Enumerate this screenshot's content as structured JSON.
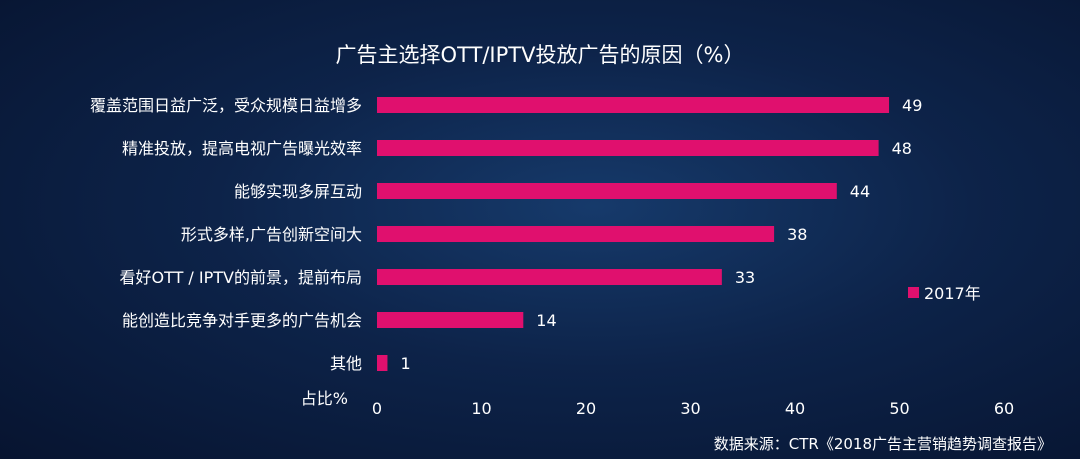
{
  "chart_data": {
    "type": "bar",
    "orientation": "horizontal",
    "title": "广告主选择OTT/IPTV投放广告的原因（%）",
    "categories": [
      "覆盖范围日益广泛，受众规模日益增多",
      "精准投放，提高电视广告曝光效率",
      "能够实现多屏互动",
      "形式多样,广告创新空间大",
      "看好OTT / IPTV的前景，提前布局",
      "能创造比竞争对手更多的广告机会",
      "其他"
    ],
    "series": [
      {
        "name": "2017年",
        "values": [
          49,
          48,
          44,
          38,
          33,
          14,
          1
        ]
      }
    ],
    "xlabel": "占比%",
    "xlim": [
      0,
      60
    ],
    "xticks": [
      0,
      10,
      20,
      30,
      40,
      50,
      60
    ],
    "grid": false,
    "legend": "right",
    "bar_color": "#e0106e"
  },
  "source": "数据来源：CTR《2018广告主营销趋势调查报告》"
}
